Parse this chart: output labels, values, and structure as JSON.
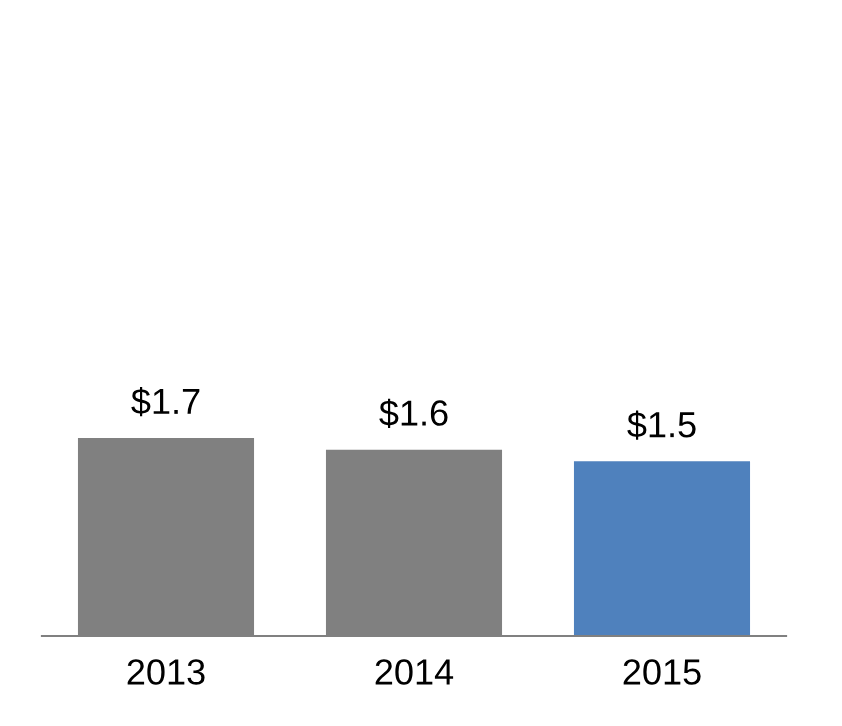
{
  "chart_data": {
    "type": "bar",
    "categories": [
      "2013",
      "2014",
      "2015"
    ],
    "values": [
      1.7,
      1.6,
      1.5
    ],
    "colors": [
      "#808080",
      "#808080",
      "#4f81bd"
    ],
    "value_labels": [
      "$1.7",
      "$1.6",
      "$1.5"
    ]
  }
}
